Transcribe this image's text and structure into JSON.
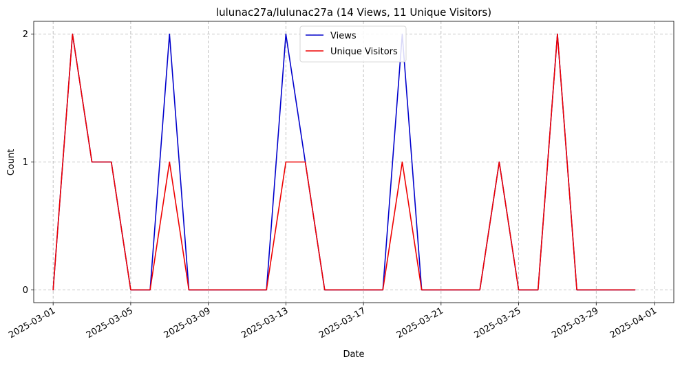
{
  "chart_data": {
    "type": "line",
    "title": "lulunac27a/lulunac27a (14 Views, 11 Unique Visitors)",
    "xlabel": "Date",
    "ylabel": "Count",
    "x_start": "2025-03-01",
    "x_end": "2025-03-31",
    "xlim": [
      "2025-02-28",
      "2025-04-02"
    ],
    "ylim": [
      -0.1,
      2.1
    ],
    "yticks": [
      0,
      1,
      2
    ],
    "xticks": [
      "2025-03-01",
      "2025-03-05",
      "2025-03-09",
      "2025-03-13",
      "2025-03-17",
      "2025-03-21",
      "2025-03-25",
      "2025-03-29",
      "2025-04-01"
    ],
    "grid": true,
    "legend_position": "top-center",
    "series": [
      {
        "name": "Views",
        "color": "#0000cc",
        "values": [
          0,
          2,
          1,
          1,
          0,
          0,
          2,
          0,
          0,
          0,
          0,
          0,
          2,
          1,
          0,
          0,
          0,
          0,
          2,
          0,
          0,
          0,
          0,
          1,
          0,
          0,
          2,
          0,
          0,
          0,
          0
        ]
      },
      {
        "name": "Unique Visitors",
        "color": "#ee0000",
        "values": [
          0,
          2,
          1,
          1,
          0,
          0,
          1,
          0,
          0,
          0,
          0,
          0,
          1,
          1,
          0,
          0,
          0,
          0,
          1,
          0,
          0,
          0,
          0,
          1,
          0,
          0,
          2,
          0,
          0,
          0,
          0
        ]
      }
    ]
  }
}
